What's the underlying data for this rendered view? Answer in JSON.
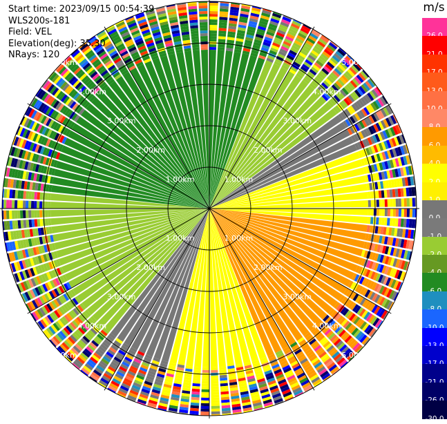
{
  "info": {
    "start_time": "Start time: 2023/09/15 00:54:39",
    "instrument": "WLS200s-181",
    "field": "Field: VEL",
    "elevation": "Elevation(deg): 35.30",
    "nrays": "NRays: 120"
  },
  "chart_data": {
    "type": "heatmap",
    "title": "",
    "field": "VEL",
    "units": "m/s",
    "range_rings_km": [
      1.0,
      2.0,
      3.0,
      4.0,
      5.0
    ],
    "range_ring_labels": [
      "1.00km",
      "2.00km",
      "3.00km",
      "4.00km",
      "5.00km"
    ],
    "max_range_km": 5.0,
    "azimuth_lines_deg": [
      0,
      30,
      60,
      90,
      120,
      150,
      180,
      210,
      240,
      270,
      300,
      330
    ],
    "colorbar": {
      "ticks": [
        "26.0",
        "21.0",
        "17.0",
        "13.0",
        "10.0",
        "8.0",
        "6.0",
        "4.0",
        "2.0",
        "1.0",
        "0.0",
        "-1.0",
        "-2.0",
        "-4.0",
        "-6.0",
        "-8.0",
        "-10.0",
        "-13.0",
        "-17.0",
        "-21.0",
        "-26.0",
        "-30.0"
      ],
      "colors": [
        "#ff3399",
        "#ff0000",
        "#ff3300",
        "#ff5a1a",
        "#ff7043",
        "#ff8866",
        "#ff9a00",
        "#ffbb00",
        "#ffff00",
        "#fff000",
        "#777777",
        "#7a7a7a",
        "#99cc33",
        "#669922",
        "#228b22",
        "#1f8fbf",
        "#1a66ff",
        "#0000ff",
        "#0000cc",
        "#00008b",
        "#000066",
        "#000044"
      ]
    },
    "sectors": [
      {
        "from_az": 270,
        "to_az": 45,
        "velocity": -5.0,
        "color": "#228b22"
      },
      {
        "from_az": 20,
        "to_az": 60,
        "velocity": -2.0,
        "color": "#99cc33"
      },
      {
        "from_az": 55,
        "to_az": 75,
        "velocity": 0.0,
        "color": "#777777"
      },
      {
        "from_az": 70,
        "to_az": 200,
        "velocity": 2.5,
        "color": "#ffff00"
      },
      {
        "from_az": 95,
        "to_az": 160,
        "velocity": 5.0,
        "color": "#ff9a00"
      },
      {
        "from_az": 195,
        "to_az": 225,
        "velocity": -0.5,
        "color": "#777777"
      },
      {
        "from_az": 220,
        "to_az": 275,
        "velocity": -2.0,
        "color": "#99cc33"
      }
    ],
    "noise_beyond_km": 4.0
  }
}
